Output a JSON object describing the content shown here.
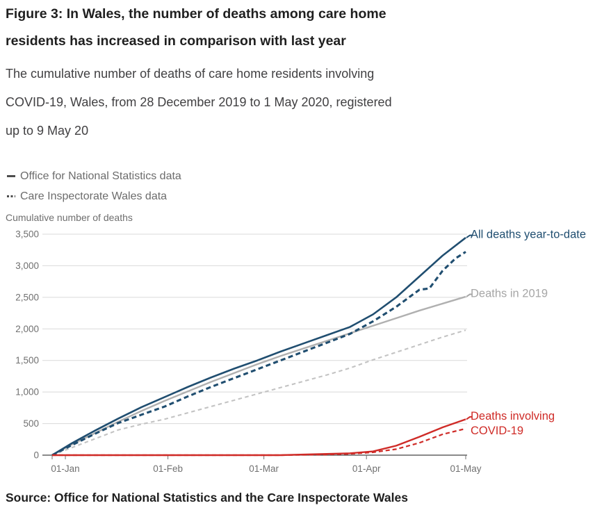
{
  "header": {
    "title": "Figure 3: In Wales, the number of deaths among care home\nresidents has increased in comparison with last year",
    "subtitle": "The cumulative number of deaths of care home residents involving\nCOVID-19, Wales, from 28 December 2019 to 1 May 2020, registered\nup to 9 May 20"
  },
  "legend": {
    "items": [
      {
        "label": "Office for National Statistics data",
        "line_style": "solid"
      },
      {
        "label": "Care Inspectorate Wales data",
        "line_style": "dotted"
      }
    ]
  },
  "footer": {
    "source": "Source: Office for National Statistics and the Care Inspectorate Wales"
  },
  "colors": {
    "navy": "#204e70",
    "gray": "#b0b0b0",
    "gray_light": "#c3c3c3",
    "red": "#cf2b27",
    "gray_text": "#a6a6a6",
    "grid": "#d9d9d9",
    "axis": "#454545",
    "tick_text": "#707070"
  },
  "chart_data": {
    "type": "line",
    "title": "Figure 3: In Wales, the number of deaths among care home residents has increased in comparison with last year",
    "subtitle": "The cumulative number of deaths of care home residents involving COVID-19, Wales, from 28 December 2019 to 1 May 2020, registered up to 9 May 20",
    "xlabel": "",
    "ylabel": "Cumulative number of deaths",
    "x_unit": "days since 28 December 2019",
    "xlim": [
      0,
      125
    ],
    "ylim": [
      0,
      3500
    ],
    "grid": "horizontal",
    "y_ticks": [
      {
        "value": 0,
        "label": "0"
      },
      {
        "value": 500,
        "label": "500"
      },
      {
        "value": 1000,
        "label": "1,000"
      },
      {
        "value": 1500,
        "label": "1,500"
      },
      {
        "value": 2000,
        "label": "2,000"
      },
      {
        "value": 2500,
        "label": "2,500"
      },
      {
        "value": 3000,
        "label": "3,000"
      },
      {
        "value": 3500,
        "label": "3,500"
      }
    ],
    "x_ticks": [
      {
        "day": 0,
        "label": ""
      },
      {
        "day": 4,
        "label": "01-Jan"
      },
      {
        "day": 35,
        "label": "01-Feb"
      },
      {
        "day": 64,
        "label": "01-Mar"
      },
      {
        "day": 95,
        "label": "01-Apr"
      },
      {
        "day": 125,
        "label": "01-May"
      }
    ],
    "series": [
      {
        "name": "Deaths in 2019 (Care Inspectorate Wales)",
        "color": "gray_light",
        "dash": "dashed",
        "width": 2.1,
        "days": [
          0,
          6,
          13,
          20,
          27,
          34,
          41,
          48,
          55,
          62,
          69,
          76,
          83,
          90,
          97,
          104,
          111,
          118,
          125
        ],
        "values": [
          0,
          120,
          260,
          400,
          490,
          570,
          670,
          770,
          870,
          970,
          1070,
          1170,
          1270,
          1380,
          1510,
          1630,
          1750,
          1870,
          1980
        ]
      },
      {
        "name": "Deaths in 2019 (Office for National Statistics)",
        "color": "gray",
        "dash": "solid",
        "width": 2.4,
        "days": [
          0,
          6,
          13,
          20,
          27,
          34,
          41,
          48,
          55,
          62,
          69,
          76,
          83,
          90,
          97,
          104,
          111,
          118,
          125
        ],
        "values": [
          0,
          170,
          350,
          530,
          700,
          860,
          1010,
          1160,
          1300,
          1440,
          1570,
          1690,
          1810,
          1930,
          2050,
          2170,
          2290,
          2400,
          2510
        ]
      },
      {
        "name": "All deaths year-to-date (Care Inspectorate Wales)",
        "color": "navy",
        "dash": "dashed",
        "width": 3.1,
        "days": [
          0,
          6,
          13,
          20,
          27,
          34,
          41,
          48,
          55,
          62,
          69,
          76,
          83,
          90,
          97,
          104,
          111,
          114,
          118,
          122,
          125
        ],
        "values": [
          0,
          160,
          340,
          510,
          640,
          770,
          930,
          1080,
          1220,
          1360,
          1500,
          1640,
          1780,
          1920,
          2120,
          2350,
          2620,
          2640,
          2920,
          3120,
          3220
        ]
      },
      {
        "name": "All deaths year-to-date (Office for National Statistics)",
        "color": "navy",
        "dash": "solid",
        "width": 2.6,
        "days": [
          0,
          6,
          13,
          20,
          27,
          34,
          41,
          48,
          55,
          62,
          69,
          76,
          83,
          90,
          97,
          104,
          111,
          118,
          125
        ],
        "values": [
          0,
          190,
          390,
          580,
          760,
          920,
          1080,
          1230,
          1370,
          1500,
          1640,
          1770,
          1900,
          2030,
          2230,
          2500,
          2830,
          3160,
          3444
        ]
      },
      {
        "name": "Deaths involving COVID-19 (Office for National Statistics)",
        "color": "red",
        "dash": "solid",
        "width": 2.4,
        "days": [
          0,
          69,
          76,
          83,
          90,
          97,
          104,
          111,
          118,
          125
        ],
        "values": [
          0,
          0,
          10,
          20,
          30,
          60,
          150,
          290,
          440,
          568
        ]
      },
      {
        "name": "Deaths involving COVID-19 (Care Inspectorate Wales)",
        "color": "red",
        "dash": "dashed",
        "width": 2.2,
        "days": [
          0,
          69,
          83,
          90,
          97,
          104,
          111,
          118,
          125
        ],
        "values": [
          0,
          0,
          10,
          20,
          45,
          95,
          195,
          330,
          420
        ]
      }
    ],
    "annotations": [
      {
        "lines": [
          "All deaths year-to-date"
        ],
        "color": "navy",
        "at_day": 125,
        "at_value": 3444
      },
      {
        "lines": [
          "Deaths in 2019"
        ],
        "color": "gray_text",
        "at_day": 125,
        "at_value": 2510
      },
      {
        "lines": [
          "Deaths involving",
          "COVID-19"
        ],
        "color": "red",
        "at_day": 125,
        "at_value": 568
      }
    ],
    "legend_position": "top-left"
  }
}
